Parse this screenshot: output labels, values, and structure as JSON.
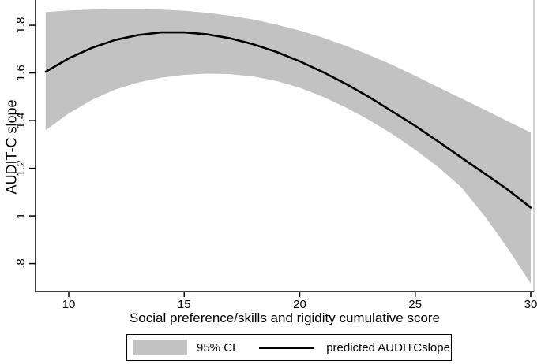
{
  "figure": {
    "background": "#ffffff",
    "band_color": "#c2c2c2",
    "line_color": "#000000",
    "axis_color": "#000000",
    "right_border_color": "#a6a6a6"
  },
  "legend": {
    "ci_label": "95% CI",
    "line_label": "predicted AUDITCslope"
  },
  "chart_data": {
    "type": "line",
    "title": "",
    "xlabel": "Social preference/skills and rigidity cumulative score",
    "ylabel": "AUDIT-C slope",
    "xlim": [
      8.564,
      30.137
    ],
    "ylim": [
      0.683,
      1.906
    ],
    "grid": false,
    "legend_position": "bottom",
    "xticks": [
      10,
      15,
      20,
      25,
      30
    ],
    "ytick_labels": [
      ".8",
      "1",
      "1.2",
      "1.4",
      "1.6",
      "1.8"
    ],
    "ytick_values": [
      0.8,
      1.0,
      1.2,
      1.4,
      1.6,
      1.8
    ],
    "x": [
      9,
      10,
      11,
      12,
      13,
      14,
      15,
      16,
      17,
      18,
      19,
      20,
      21,
      22,
      23,
      24,
      25,
      26,
      27,
      28,
      29,
      30
    ],
    "series": [
      {
        "name": "predicted AUDITCslope",
        "kind": "line",
        "values": [
          1.605,
          1.661,
          1.705,
          1.738,
          1.759,
          1.77,
          1.77,
          1.762,
          1.745,
          1.72,
          1.688,
          1.649,
          1.604,
          1.554,
          1.499,
          1.439,
          1.378,
          1.312,
          1.245,
          1.178,
          1.111,
          1.035
        ]
      },
      {
        "name": "95% CI",
        "kind": "band",
        "upper": [
          1.855,
          1.862,
          1.866,
          1.868,
          1.868,
          1.866,
          1.861,
          1.852,
          1.84,
          1.824,
          1.803,
          1.778,
          1.748,
          1.714,
          1.676,
          1.634,
          1.588,
          1.54,
          1.493,
          1.446,
          1.398,
          1.35
        ],
        "lower": [
          1.36,
          1.43,
          1.487,
          1.53,
          1.56,
          1.58,
          1.592,
          1.597,
          1.595,
          1.585,
          1.566,
          1.538,
          1.5,
          1.455,
          1.403,
          1.344,
          1.278,
          1.205,
          1.12,
          1.0,
          0.865,
          0.716
        ]
      }
    ]
  }
}
